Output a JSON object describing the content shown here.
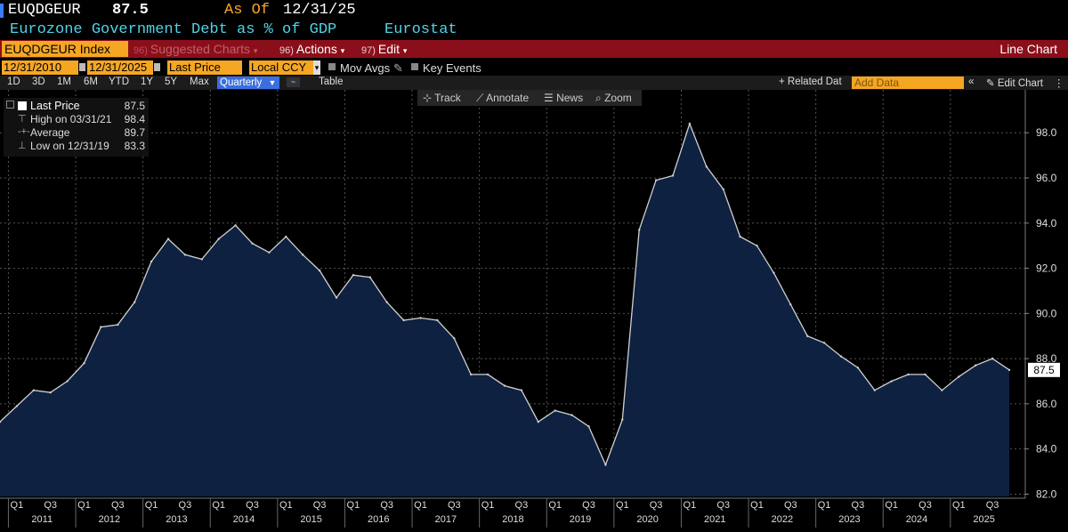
{
  "header": {
    "ticker": "EUQDGEUR",
    "value": "87.5",
    "as_of_label": "As Of",
    "as_of_date": "12/31/25",
    "description": "Eurozone Government Debt as % of GDP",
    "source": "Eurostat"
  },
  "menubar": {
    "index": "EUQDGEUR Index",
    "suggested": {
      "num": "96)",
      "label": "Suggested Charts"
    },
    "actions": {
      "num": "96)",
      "label": "Actions"
    },
    "edit": {
      "num": "97)",
      "label": "Edit"
    },
    "chart_type": "Line Chart"
  },
  "controls": {
    "start_date": "12/31/2010",
    "end_date": "12/31/2025",
    "field": "Last Price",
    "currency": "Local CCY",
    "mov_avgs": "Mov Avgs",
    "key_events": "Key Events",
    "dash": "-"
  },
  "periods": [
    "1D",
    "3D",
    "1M",
    "6M",
    "YTD",
    "1Y",
    "5Y",
    "Max"
  ],
  "frequency": "Quarterly",
  "table_label": "Table",
  "related_data": "Related Dat",
  "add_data_placeholder": "Add Data",
  "edit_chart": "Edit Chart",
  "tools": {
    "track": "Track",
    "annotate": "Annotate",
    "news": "News",
    "zoom": "Zoom"
  },
  "legend": {
    "last_label": "Last Price",
    "last_value": "87.5",
    "high_label": "High on 03/31/21",
    "high_value": "98.4",
    "avg_label": "Average",
    "avg_value": "89.7",
    "low_label": "Low on 12/31/19",
    "low_value": "83.3"
  },
  "colors": {
    "background": "#000000",
    "fill": "#0e2140",
    "line": "#d0d0d0",
    "menubar": "#8b0f1a",
    "orange": "#f5a623",
    "header_text": "#4fd3e6",
    "grid": "#555555"
  },
  "chart_data": {
    "type": "area",
    "x": [
      "2010Q4",
      "2011Q1",
      "2011Q2",
      "2011Q3",
      "2011Q4",
      "2012Q1",
      "2012Q2",
      "2012Q3",
      "2012Q4",
      "2013Q1",
      "2013Q2",
      "2013Q3",
      "2013Q4",
      "2014Q1",
      "2014Q2",
      "2014Q3",
      "2014Q4",
      "2015Q1",
      "2015Q2",
      "2015Q3",
      "2015Q4",
      "2016Q1",
      "2016Q2",
      "2016Q3",
      "2016Q4",
      "2017Q1",
      "2017Q2",
      "2017Q3",
      "2017Q4",
      "2018Q1",
      "2018Q2",
      "2018Q3",
      "2018Q4",
      "2019Q1",
      "2019Q2",
      "2019Q3",
      "2019Q4",
      "2020Q1",
      "2020Q2",
      "2020Q3",
      "2020Q4",
      "2021Q1",
      "2021Q2",
      "2021Q3",
      "2021Q4",
      "2022Q1",
      "2022Q2",
      "2022Q3",
      "2022Q4",
      "2023Q1",
      "2023Q2",
      "2023Q3",
      "2023Q4",
      "2024Q1",
      "2024Q2",
      "2024Q3",
      "2024Q4",
      "2025Q1",
      "2025Q2",
      "2025Q3",
      "2025Q4"
    ],
    "series": [
      {
        "values": [
          85.2,
          85.9,
          86.6,
          86.5,
          87.0,
          87.8,
          89.4,
          89.5,
          90.5,
          92.3,
          93.3,
          92.6,
          92.4,
          93.3,
          93.9,
          93.1,
          92.7,
          93.4,
          92.6,
          91.9,
          90.7,
          91.7,
          91.6,
          90.5,
          89.7,
          89.8,
          89.7,
          88.9,
          87.3,
          87.3,
          86.8,
          86.6,
          85.2,
          85.7,
          85.5,
          85.0,
          83.3,
          85.3,
          93.7,
          95.9,
          96.1,
          98.4,
          96.5,
          95.5,
          93.4,
          93.0,
          91.8,
          90.4,
          89.0,
          88.7,
          88.1,
          87.6,
          86.6,
          87.0,
          87.3,
          87.3,
          86.6,
          87.2,
          87.7,
          88.0,
          87.5
        ]
      }
    ],
    "ylim": [
      81.9,
      99.9
    ],
    "y_ticks": [
      "82.0",
      "84.0",
      "86.0",
      "88.0",
      "90.0",
      "92.0",
      "94.0",
      "96.0",
      "98.0"
    ],
    "x_quarter_labels": [
      "Q1",
      "Q3"
    ],
    "x_years": [
      "2011",
      "2012",
      "2013",
      "2014",
      "2015",
      "2016",
      "2017",
      "2018",
      "2019",
      "2020",
      "2021",
      "2022",
      "2023",
      "2024",
      "2025"
    ],
    "last_value_label": "87.5",
    "grid": true,
    "legend_position": "top-left"
  }
}
